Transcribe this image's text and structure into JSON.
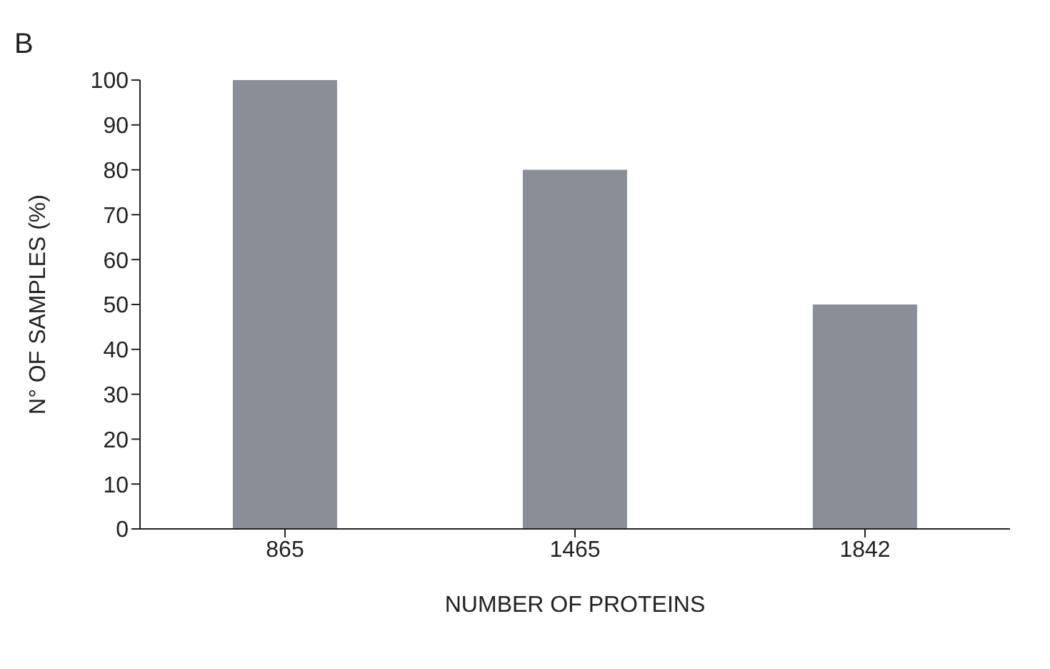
{
  "chart_data": {
    "type": "bar",
    "title": "B",
    "xlabel": "NUMBER OF PROTEINS",
    "ylabel": "N° OF SAMPLES (%)",
    "categories": [
      "865",
      "1465",
      "1842"
    ],
    "values": [
      100,
      80,
      50
    ],
    "color": "#8a8e96",
    "ylim": [
      0,
      100
    ],
    "yticks": [
      0,
      10,
      20,
      30,
      40,
      50,
      60,
      70,
      80,
      90,
      100
    ],
    "grid": false,
    "legend": false
  }
}
